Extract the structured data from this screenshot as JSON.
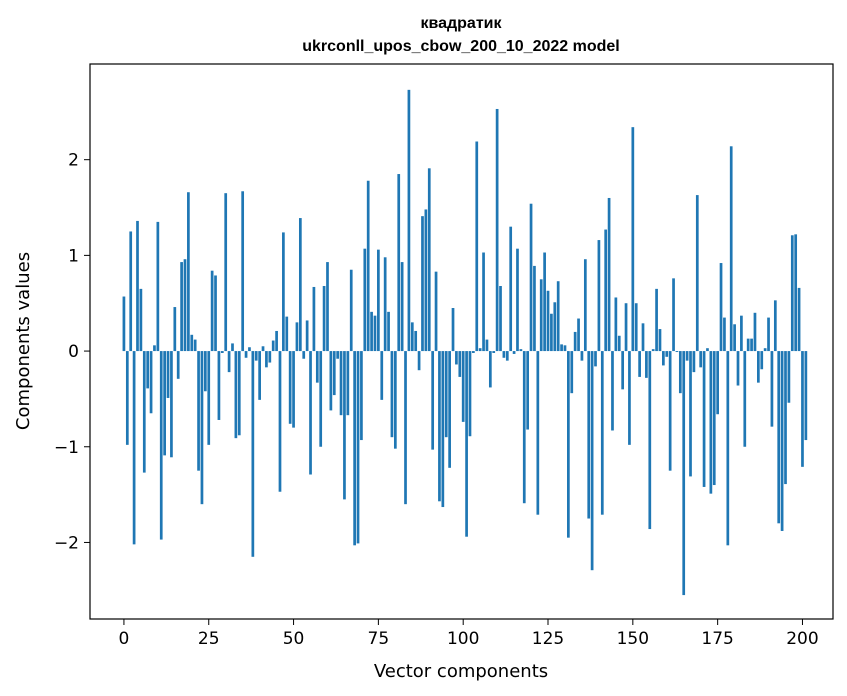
{
  "chart_data": {
    "type": "bar",
    "title_line1": "квадратик",
    "title_line2": "ukrconll_upos_cbow_200_10_2022 model",
    "xlabel": "Vector components",
    "ylabel": "Components values",
    "xlim": [
      -10,
      209
    ],
    "ylim": [
      -2.8,
      3.0
    ],
    "xticks": [
      0,
      25,
      50,
      75,
      100,
      125,
      150,
      175,
      200
    ],
    "xtick_labels": [
      "0",
      "25",
      "50",
      "75",
      "100",
      "125",
      "150",
      "175",
      "200"
    ],
    "yticks": [
      -2,
      -1,
      0,
      1,
      2
    ],
    "ytick_labels": [
      "−2",
      "−1",
      "0",
      "1",
      "2"
    ],
    "bar_color": "#1f77b4",
    "grid": false,
    "values": [
      0.57,
      -0.98,
      1.25,
      -2.02,
      1.36,
      0.65,
      -1.27,
      -0.39,
      -0.65,
      0.06,
      1.35,
      -1.97,
      -1.09,
      -0.49,
      -1.11,
      0.46,
      -0.29,
      0.93,
      0.96,
      1.66,
      0.17,
      0.12,
      -1.25,
      -1.6,
      -0.42,
      -0.98,
      0.84,
      0.79,
      -0.72,
      -0.02,
      1.65,
      -0.22,
      0.08,
      -0.91,
      -0.88,
      1.67,
      -0.07,
      0.04,
      -2.15,
      -0.1,
      -0.51,
      0.05,
      -0.17,
      -0.12,
      0.11,
      0.21,
      -1.47,
      1.24,
      0.36,
      -0.76,
      -0.8,
      0.3,
      1.39,
      -0.08,
      0.32,
      -1.29,
      0.67,
      -0.33,
      -1.0,
      0.68,
      0.93,
      -0.62,
      -0.46,
      -0.08,
      -0.67,
      -1.55,
      -0.67,
      0.85,
      -2.03,
      -2.01,
      -0.93,
      1.07,
      1.78,
      0.41,
      0.37,
      1.06,
      -0.51,
      0.98,
      0.41,
      -0.9,
      -1.02,
      1.85,
      0.93,
      -1.6,
      2.73,
      0.3,
      0.21,
      -0.2,
      1.41,
      1.48,
      1.91,
      -1.03,
      0.83,
      -1.57,
      -1.63,
      -0.9,
      -1.22,
      0.45,
      -0.14,
      -0.27,
      -0.74,
      -1.94,
      -0.89,
      -0.02,
      2.19,
      0.03,
      1.03,
      0.12,
      -0.38,
      -0.02,
      2.53,
      0.68,
      -0.07,
      -0.1,
      1.3,
      -0.03,
      1.07,
      0.02,
      -1.59,
      -0.82,
      1.54,
      0.89,
      -1.71,
      0.75,
      1.03,
      0.63,
      0.39,
      0.51,
      0.73,
      0.07,
      0.06,
      -1.95,
      -0.44,
      0.2,
      0.34,
      -0.1,
      0.96,
      -1.75,
      -2.29,
      -0.16,
      1.16,
      -1.71,
      1.27,
      1.6,
      -0.83,
      0.56,
      0.16,
      -0.4,
      0.5,
      -0.98,
      2.34,
      0.5,
      -0.27,
      0.29,
      -0.28,
      -1.86,
      0.02,
      0.65,
      0.23,
      -0.15,
      -0.06,
      -1.25,
      0.76,
      -0.01,
      -0.44,
      -2.55,
      -0.1,
      -1.31,
      -0.22,
      1.63,
      -0.17,
      -1.42,
      0.03,
      -1.49,
      -1.4,
      -0.66,
      0.92,
      0.35,
      -2.03,
      2.14,
      0.28,
      -0.36,
      0.37,
      -1.0,
      0.13,
      0.13,
      0.4,
      -0.33,
      -0.19,
      0.03,
      0.35,
      -0.79,
      0.53,
      -1.8,
      -1.88,
      -1.39,
      -0.54,
      1.21,
      1.22,
      0.66,
      -1.21,
      -0.93
    ]
  }
}
